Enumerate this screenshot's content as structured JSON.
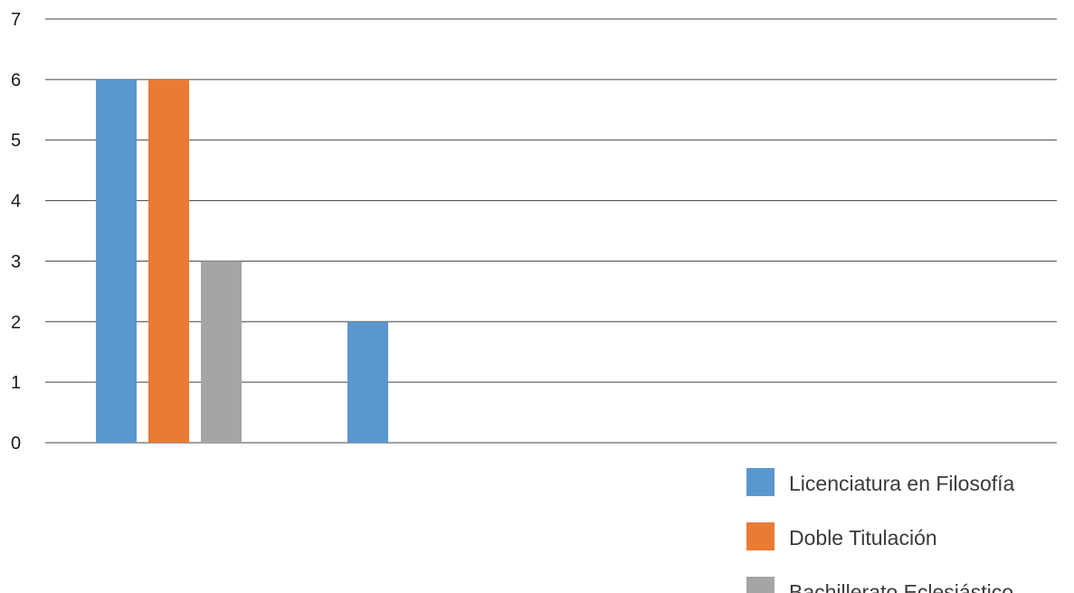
{
  "chart_data": {
    "type": "bar",
    "categories": [
      "",
      ""
    ],
    "series": [
      {
        "name": "Licenciatura en Filosofía",
        "values": [
          6,
          2
        ],
        "color": "#5B97CF"
      },
      {
        "name": "Doble Titulación",
        "values": [
          6,
          0
        ],
        "color": "#E97B35"
      },
      {
        "name": "Bachillerato Eclesiástico",
        "values": [
          3,
          0
        ],
        "color": "#A5A5A5"
      }
    ],
    "title": "",
    "xlabel": "",
    "ylabel": "",
    "ylim": [
      0,
      7
    ],
    "yticks": [
      0,
      1,
      2,
      3,
      4,
      5,
      6,
      7
    ],
    "grid": true,
    "legend_position": "bottom-right"
  }
}
